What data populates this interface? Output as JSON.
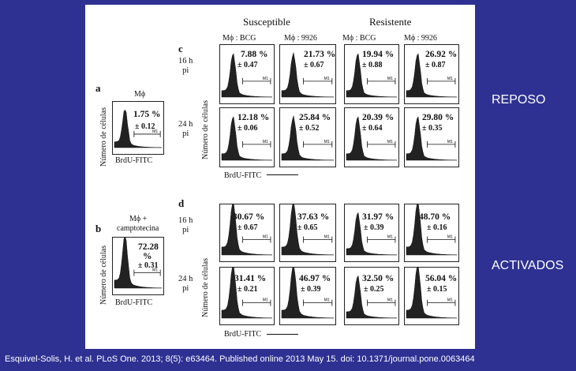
{
  "side_labels": {
    "reposo": "REPOSO",
    "activados": "ACTIVADOS"
  },
  "caption": "Esquivel-Solis, H. et al. PLoS One. 2013; 8(5): e63464. Published online 2013 May 15. doi: 10.1371/journal.pone.0063464",
  "figure": {
    "headers": {
      "susceptible": "Susceptible",
      "resistente": "Resistente"
    },
    "col_headers": [
      "Mϕ : BCG",
      "Mϕ : 9926",
      "Mϕ : BCG",
      "Mϕ : 9926"
    ],
    "rows": {
      "h16": "16 h",
      "h24": "24 h",
      "pi": "pi"
    },
    "axis": {
      "ylabel": "Número de células",
      "xlabel": "BrdU-FITC",
      "gate": "M1"
    },
    "panel_a": {
      "letter": "a",
      "title": "Mϕ",
      "pct": "1.75 %",
      "sd": "± 0.12"
    },
    "panel_b": {
      "letter": "b",
      "title1": "Mϕ +",
      "title2": "camptotecina",
      "pct": "72.28",
      "pct2": "%",
      "sd": "± 0.31"
    },
    "panel_c": {
      "letter": "c",
      "cells": [
        {
          "pct": "7.88 %",
          "sd": "± 0.47"
        },
        {
          "pct": "21.73 %",
          "sd": "± 0.67"
        },
        {
          "pct": "19.94 %",
          "sd": "± 0.88"
        },
        {
          "pct": "26.92 %",
          "sd": "± 0.87"
        },
        {
          "pct": "12.18 %",
          "sd": "± 0.06"
        },
        {
          "pct": "25.84 %",
          "sd": "± 0.52"
        },
        {
          "pct": "20.39 %",
          "sd": "± 0.64"
        },
        {
          "pct": "29.80 %",
          "sd": "± 0.35"
        }
      ]
    },
    "panel_d": {
      "letter": "d",
      "cells": [
        {
          "pct": "30.67 %",
          "sd": "± 0.67"
        },
        {
          "pct": "37.63 %",
          "sd": "± 0.65"
        },
        {
          "pct": "31.97 %",
          "sd": "± 0.39"
        },
        {
          "pct": "48.70 %",
          "sd": "± 0.16"
        },
        {
          "pct": "31.41 %",
          "sd": "± 0.21"
        },
        {
          "pct": "46.97 %",
          "sd": "± 0.39"
        },
        {
          "pct": "32.50 %",
          "sd": "± 0.25"
        },
        {
          "pct": "56.04 %",
          "sd": "± 0.15"
        }
      ]
    }
  }
}
